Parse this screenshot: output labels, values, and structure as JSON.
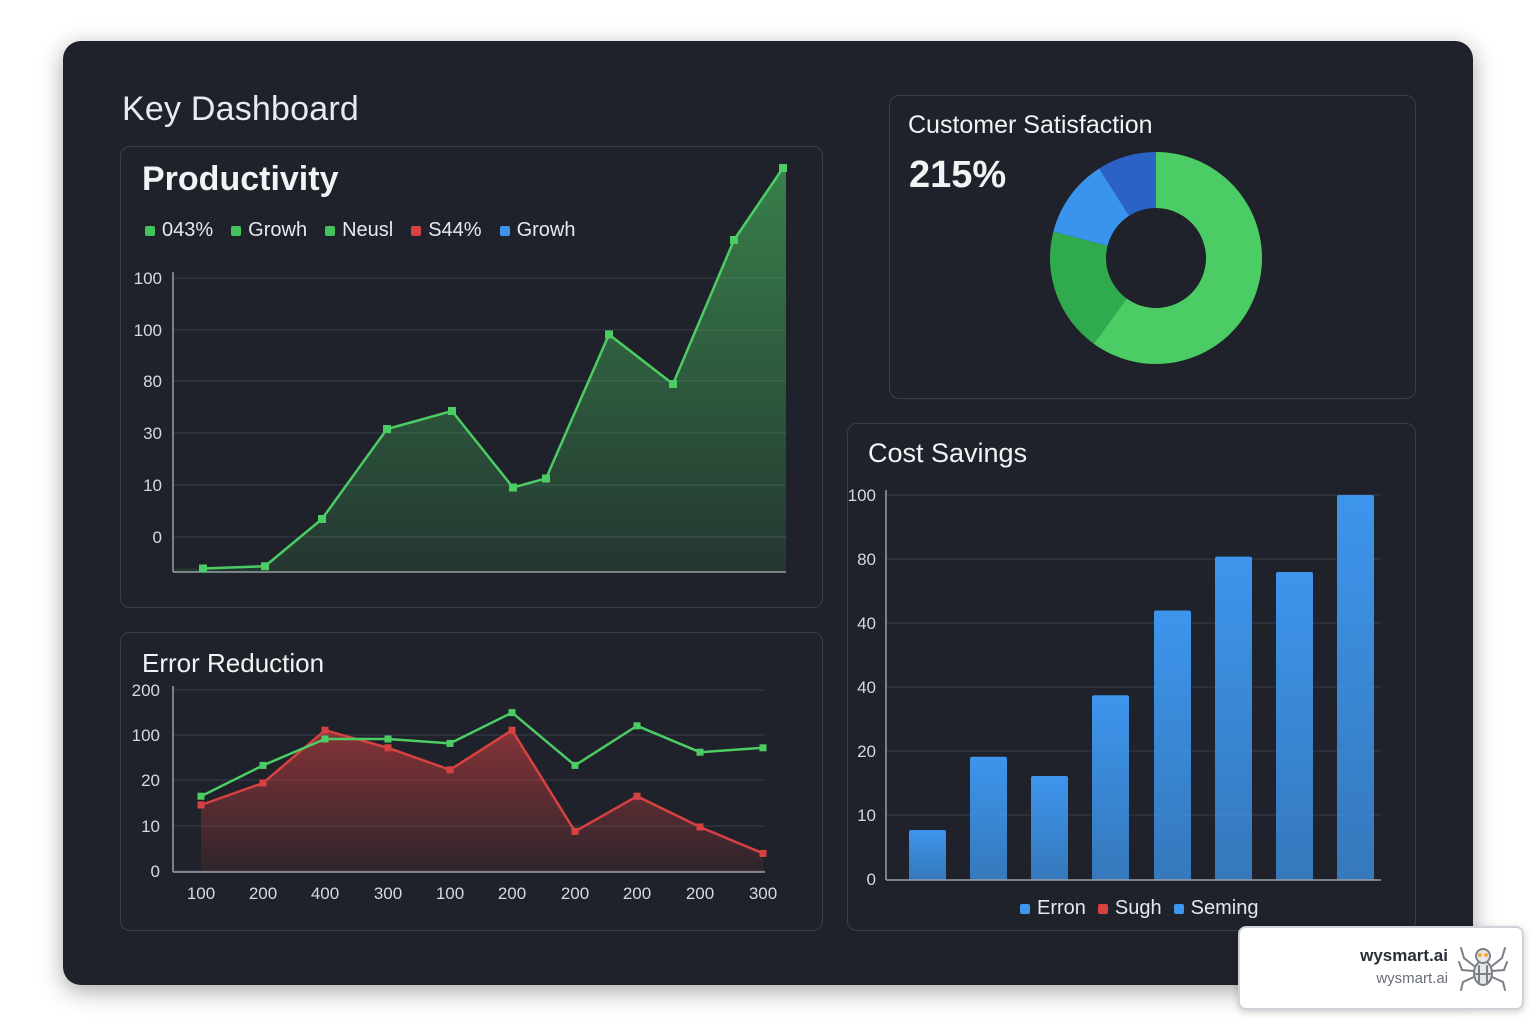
{
  "dashboard": {
    "title": "Key Dashboard"
  },
  "colors": {
    "green": "#4ccc64",
    "red": "#d84141",
    "blue": "#3d95ec",
    "darkblue": "#2f66c9",
    "midgreen": "#36a852"
  },
  "productivity": {
    "legend": [
      {
        "label": "043%",
        "color": "#43c35b"
      },
      {
        "label": "Growh",
        "color": "#43c35b"
      },
      {
        "label": "Neusl",
        "color": "#43c35b"
      },
      {
        "label": "S44%",
        "color": "#d84141"
      },
      {
        "label": "Growh",
        "color": "#3d95ec"
      }
    ]
  },
  "satisfaction": {
    "value": "215%"
  },
  "watermark": {
    "brand": "wysmart.ai",
    "url": "wysmart.ai"
  },
  "chart_data": [
    {
      "type": "area",
      "title": "Productivity",
      "y_tick_labels": [
        "100",
        "100",
        "80",
        "30",
        "10",
        "0"
      ],
      "series": [
        {
          "name": "Productivity",
          "color": "#4ccc64",
          "values": [
            -7,
            -6.5,
            4,
            24,
            28,
            11,
            13,
            45,
            34,
            66,
            82
          ]
        }
      ]
    },
    {
      "type": "pie",
      "title": "Customer Satisfaction",
      "donut": true,
      "slices": [
        {
          "value": 60,
          "color": "#4ccc64"
        },
        {
          "value": 19,
          "color": "#2faa4c"
        },
        {
          "value": 12,
          "color": "#3a93ec"
        },
        {
          "value": 9,
          "color": "#2a62c6"
        }
      ]
    },
    {
      "type": "area",
      "title": "Error Reduction",
      "x_tick_labels": [
        "100",
        "200",
        "400",
        "300",
        "100",
        "200",
        "200",
        "200",
        "200",
        "300"
      ],
      "y_tick_labels": [
        "200",
        "100",
        "20",
        "10",
        "0"
      ],
      "series": [
        {
          "name": "green",
          "color": "#4ccc64",
          "values": [
            17,
            24,
            30,
            30,
            29,
            36,
            24,
            33,
            27,
            28
          ]
        },
        {
          "name": "red",
          "color": "#d84141",
          "values": [
            15,
            20,
            32,
            28,
            23,
            32,
            9,
            17,
            10,
            4
          ]
        }
      ]
    },
    {
      "type": "bar",
      "title": "Cost Savings",
      "y_tick_labels": [
        "100",
        "80",
        "40",
        "40",
        "20",
        "10",
        "0"
      ],
      "values": [
        13,
        32,
        27,
        48,
        70,
        84,
        80,
        100
      ],
      "legend": [
        {
          "label": "Erron",
          "color": "#3d95ec"
        },
        {
          "label": "Sugh",
          "color": "#d84141"
        },
        {
          "label": "Seming",
          "color": "#3d95ec"
        }
      ]
    }
  ]
}
